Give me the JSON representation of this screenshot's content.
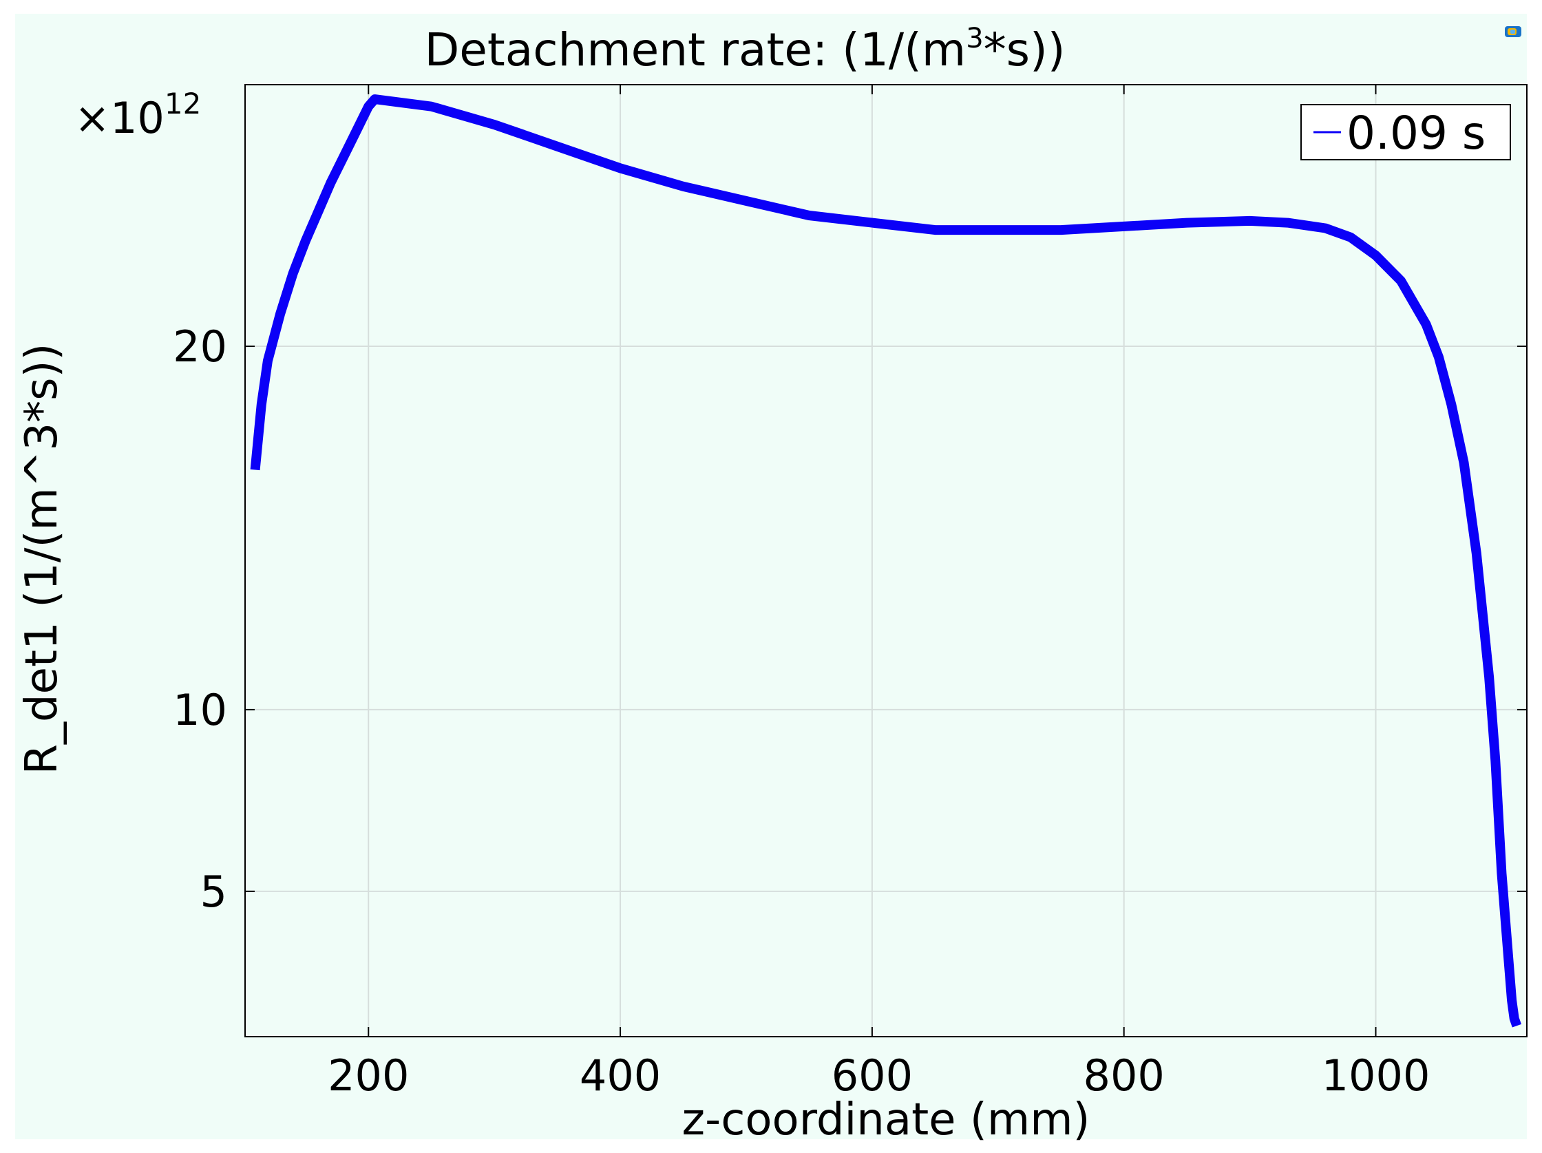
{
  "colors": {
    "page_background": "#ffffff",
    "figure_background": "#f0fdf8",
    "plot_background": "#f0fdf8",
    "series_line": "#0b00f7",
    "grid": "#d6dedc",
    "axis": "#000000"
  },
  "toolbar": {
    "icon": "palette-icon"
  },
  "chart_data": {
    "type": "line",
    "title_main": "Detachment rate:  (1/(m",
    "title_sup": "3",
    "title_end": "*s))",
    "xlabel": "z-coordinate (mm)",
    "ylabel": "R_det1 (1/(m^3*s))",
    "y_multiplier_base": "×10",
    "y_multiplier_exp": "12",
    "xlim": [
      102,
      1120
    ],
    "ylim": [
      1.0,
      27.2
    ],
    "x_ticks": [
      200,
      400,
      600,
      800,
      1000
    ],
    "x_tick_labels": [
      "200",
      "400",
      "600",
      "800",
      "1000"
    ],
    "y_ticks": [
      5,
      10,
      20
    ],
    "y_tick_labels": [
      "5",
      "10",
      "20"
    ],
    "grid": true,
    "legend_position": "top-right",
    "series": [
      {
        "name": "0.09 s",
        "x": [
          110,
          115,
          120,
          130,
          140,
          150,
          160,
          170,
          180,
          190,
          200,
          205,
          250,
          300,
          350,
          400,
          450,
          500,
          550,
          600,
          650,
          700,
          750,
          800,
          850,
          900,
          930,
          960,
          980,
          1000,
          1020,
          1040,
          1050,
          1060,
          1070,
          1080,
          1090,
          1095,
          1100,
          1105,
          1108,
          1110,
          1112
        ],
        "y": [
          16.6,
          18.4,
          19.6,
          20.9,
          22.0,
          22.9,
          23.7,
          24.5,
          25.2,
          25.9,
          26.6,
          26.8,
          26.6,
          26.1,
          25.5,
          24.9,
          24.4,
          24.0,
          23.6,
          23.4,
          23.2,
          23.2,
          23.2,
          23.3,
          23.4,
          23.45,
          23.4,
          23.25,
          23.0,
          22.5,
          21.8,
          20.6,
          19.7,
          18.4,
          16.8,
          14.3,
          10.9,
          8.6,
          5.5,
          3.3,
          2.0,
          1.5,
          1.3
        ]
      }
    ]
  }
}
